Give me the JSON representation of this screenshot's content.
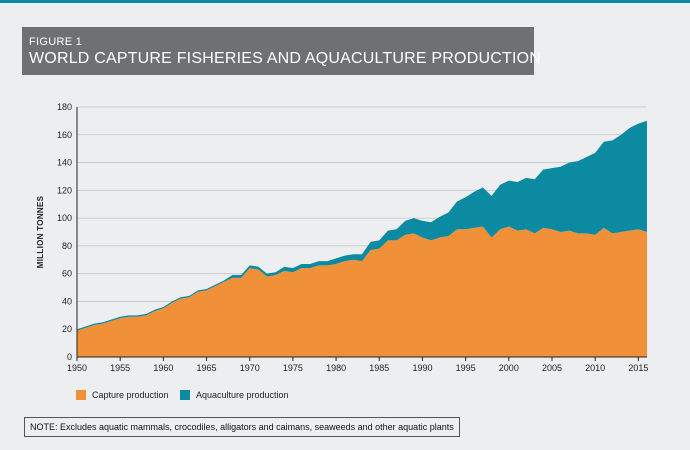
{
  "figure": {
    "number": "FIGURE 1",
    "title": "WORLD CAPTURE FISHERIES AND AQUACULTURE PRODUCTION"
  },
  "note": "NOTE: Excludes aquatic mammals, crocodiles, alligators and caimans, seaweeds and other aquatic plants",
  "colors": {
    "capture": "#f0913a",
    "aquaculture": "#0b8aa2",
    "accent_rule": "#0a8aa6",
    "header_band": "#6f7072",
    "background": "#edeef0"
  },
  "chart_data": {
    "type": "area",
    "stacked": true,
    "ylabel": "MILLION TONNES",
    "ylim": [
      0,
      180
    ],
    "yticks": [
      0,
      20,
      40,
      60,
      80,
      100,
      120,
      140,
      160,
      180
    ],
    "xlim": [
      1950,
      2016
    ],
    "xticks": [
      1950,
      1955,
      1960,
      1965,
      1970,
      1975,
      1980,
      1985,
      1990,
      1995,
      2000,
      2005,
      2010,
      2015
    ],
    "grid": "horizontal",
    "legend_position": "bottom-left",
    "x": [
      1950,
      1951,
      1952,
      1953,
      1954,
      1955,
      1956,
      1957,
      1958,
      1959,
      1960,
      1961,
      1962,
      1963,
      1964,
      1965,
      1966,
      1967,
      1968,
      1969,
      1970,
      1971,
      1972,
      1973,
      1974,
      1975,
      1976,
      1977,
      1978,
      1979,
      1980,
      1981,
      1982,
      1983,
      1984,
      1985,
      1986,
      1987,
      1988,
      1989,
      1990,
      1991,
      1992,
      1993,
      1994,
      1995,
      1996,
      1997,
      1998,
      1999,
      2000,
      2001,
      2002,
      2003,
      2004,
      2005,
      2006,
      2007,
      2008,
      2009,
      2010,
      2011,
      2012,
      2013,
      2014,
      2015,
      2016
    ],
    "series": [
      {
        "name": "Capture production",
        "values": [
          19,
          21,
          23,
          24,
          26,
          28,
          29,
          29,
          30,
          33,
          35,
          39,
          42,
          43,
          47,
          48,
          51,
          54,
          57,
          57,
          64,
          63,
          58,
          59,
          62,
          61,
          64,
          64,
          66,
          66,
          67,
          69,
          70,
          69,
          77,
          78,
          84,
          84,
          88,
          89,
          86,
          84,
          86,
          87,
          92,
          92,
          93,
          94,
          86,
          92,
          94,
          91,
          92,
          89,
          93,
          92,
          90,
          91,
          89,
          89,
          88,
          93,
          89,
          90,
          91,
          92,
          90
        ]
      },
      {
        "name": "Aquaculture production",
        "values": [
          1,
          1,
          1,
          1,
          1,
          1,
          1,
          1,
          1,
          1,
          1,
          1,
          1,
          1,
          1,
          1,
          1,
          1,
          2,
          2,
          2,
          2,
          2,
          2,
          3,
          3,
          3,
          3,
          3,
          3,
          4,
          4,
          4,
          5,
          6,
          6,
          7,
          8,
          10,
          11,
          12,
          13,
          15,
          17,
          20,
          23,
          26,
          28,
          30,
          32,
          33,
          35,
          37,
          39,
          42,
          44,
          47,
          49,
          52,
          55,
          59,
          62,
          67,
          70,
          74,
          76,
          80
        ]
      }
    ]
  }
}
